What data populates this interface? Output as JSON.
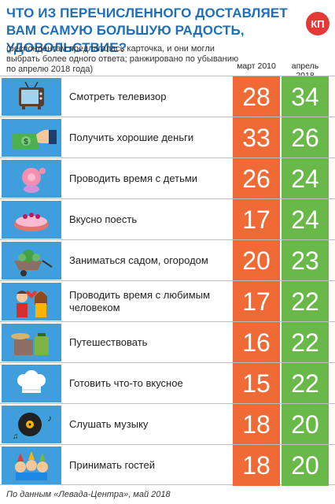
{
  "header": {
    "title": "ЧТО ИЗ ПЕРЕЧИСЛЕННОГО ДОСТАВЛЯЕТ ВАМ САМУЮ БОЛЬШУЮ РАДОСТЬ, УДОВОЛЬСТВИЕ?",
    "subtitle": "(респондентам предлагалась карточка, и они могли выбрать более одного ответа; ранжировано по убыванию по апрелю 2018 года)",
    "logo_text": "КП"
  },
  "colors": {
    "title": "#1e6fb8",
    "march2010": "#ef6a35",
    "april2018": "#69b84a",
    "icon_bg": "#3f9fdc"
  },
  "chart_data": {
    "type": "table",
    "title": "ЧТО ИЗ ПЕРЕЧИСЛЕННОГО ДОСТАВЛЯЕТ ВАМ САМУЮ БОЛЬШУЮ РАДОСТЬ, УДОВОЛЬСТВИЕ?",
    "columns": [
      "март 2010",
      "апрель 2018"
    ],
    "rows": [
      {
        "label": "Смотреть телевизор",
        "icon": "tv-icon",
        "values": [
          28,
          34
        ]
      },
      {
        "label": "Получить хорошие деньги",
        "icon": "money-icon",
        "values": [
          33,
          26
        ]
      },
      {
        "label": "Проводить время с детьми",
        "icon": "pacifier-icon",
        "values": [
          26,
          24
        ]
      },
      {
        "label": "Вкусно поесть",
        "icon": "cake-icon",
        "values": [
          17,
          24
        ]
      },
      {
        "label": "Заниматься садом, огородом",
        "icon": "wheelbarrow-icon",
        "values": [
          20,
          23
        ]
      },
      {
        "label": "Проводить время с любимым человеком",
        "icon": "couple-icon",
        "values": [
          17,
          22
        ]
      },
      {
        "label": "Путешествовать",
        "icon": "suitcase-icon",
        "values": [
          16,
          22
        ]
      },
      {
        "label": "Готовить что-то вкусное",
        "icon": "chef-hat-icon",
        "values": [
          15,
          22
        ]
      },
      {
        "label": "Слушать музыку",
        "icon": "vinyl-record-icon",
        "values": [
          18,
          20
        ]
      },
      {
        "label": "Принимать гостей",
        "icon": "party-icon",
        "values": [
          18,
          20
        ]
      }
    ]
  },
  "source": "По данным «Левада-Центра», май 2018"
}
